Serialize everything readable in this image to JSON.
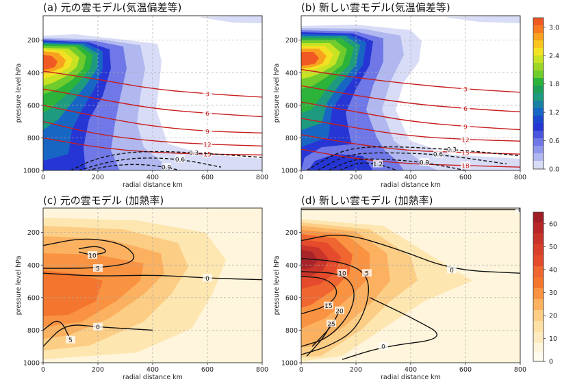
{
  "figure": {
    "panels": [
      {
        "id": "a",
        "title": "(a) 元の雲モデル(気温偏差等)"
      },
      {
        "id": "b",
        "title": "(b) 新しい雲モデル(気温偏差等)"
      },
      {
        "id": "c",
        "title": "(c) 元の雲モデル (加熱率)"
      },
      {
        "id": "d",
        "title": "(d) 新しい雲モデル (加熱率)"
      }
    ],
    "xlabel": "radial distance km",
    "ylabel": "pressure level hPa",
    "x_ticks": [
      "0",
      "200",
      "400",
      "600",
      "800"
    ],
    "y_ticks": [
      "200",
      "400",
      "600",
      "800",
      "1000"
    ],
    "colorbar_top": {
      "ticks": [
        "3.0",
        "2.4",
        "1.8",
        "1.2",
        "0.6",
        "0.0"
      ]
    },
    "colorbar_bottom": {
      "ticks": [
        "60",
        "50",
        "40",
        "30",
        "20",
        "10",
        "0"
      ]
    }
  },
  "chart_data": [
    {
      "type": "heatmap",
      "panel": "a",
      "title": "(a) 元の雲モデル(気温偏差等)",
      "xlabel": "radial distance km",
      "ylabel": "pressure level hPa",
      "xlim": [
        0,
        800
      ],
      "ylim": [
        1000,
        50
      ],
      "y_inverted": true,
      "grid": true,
      "shading_range": [
        0.0,
        3.2
      ],
      "shading_colorbar_ticks": [
        0.0,
        0.6,
        1.2,
        1.8,
        2.4,
        3.0
      ],
      "red_contours": [
        {
          "label": "3",
          "points": [
            [
              0,
              390
            ],
            [
              200,
              440
            ],
            [
              400,
              500
            ],
            [
              600,
              530
            ],
            [
              800,
              550
            ]
          ]
        },
        {
          "label": "6",
          "points": [
            [
              0,
              500
            ],
            [
              200,
              560
            ],
            [
              400,
              620
            ],
            [
              600,
              650
            ],
            [
              800,
              670
            ]
          ]
        },
        {
          "label": "9",
          "points": [
            [
              0,
              600
            ],
            [
              200,
              670
            ],
            [
              400,
              730
            ],
            [
              600,
              760
            ],
            [
              800,
              770
            ]
          ]
        },
        {
          "label": "12",
          "points": [
            [
              0,
              700
            ],
            [
              200,
              780
            ],
            [
              400,
              820
            ],
            [
              600,
              840
            ],
            [
              800,
              850
            ]
          ]
        },
        {
          "label": "15",
          "points": [
            [
              0,
              800
            ],
            [
              200,
              860
            ],
            [
              400,
              890
            ],
            [
              600,
              900
            ],
            [
              800,
              905
            ]
          ]
        }
      ],
      "black_contours": [
        {
          "label": "0.3",
          "points": [
            [
              100,
              1000
            ],
            [
              200,
              920
            ],
            [
              350,
              880
            ],
            [
              550,
              890
            ],
            [
              800,
              920
            ]
          ]
        },
        {
          "label": "0.6",
          "points": [
            [
              130,
              1000
            ],
            [
              230,
              950
            ],
            [
              350,
              920
            ],
            [
              500,
              930
            ],
            [
              650,
              980
            ]
          ]
        },
        {
          "label": "0.9",
          "points": [
            [
              160,
              1000
            ],
            [
              250,
              970
            ],
            [
              350,
              960
            ],
            [
              450,
              980
            ],
            [
              500,
              1000
            ]
          ]
        }
      ]
    },
    {
      "type": "heatmap",
      "panel": "b",
      "title": "(b) 新しい雲モデル(気温偏差等)",
      "xlabel": "radial distance km",
      "ylabel": "pressure level hPa",
      "xlim": [
        0,
        800
      ],
      "ylim": [
        1000,
        50
      ],
      "y_inverted": true,
      "grid": true,
      "shading_range": [
        0.0,
        3.2
      ],
      "shading_colorbar_ticks": [
        0.0,
        0.6,
        1.2,
        1.8,
        2.4,
        3.0
      ],
      "red_contours": [
        {
          "label": "3",
          "points": [
            [
              0,
              380
            ],
            [
              200,
              430
            ],
            [
              400,
              470
            ],
            [
              600,
              500
            ],
            [
              800,
              520
            ]
          ]
        },
        {
          "label": "6",
          "points": [
            [
              0,
              480
            ],
            [
              200,
              540
            ],
            [
              400,
              590
            ],
            [
              600,
              620
            ],
            [
              800,
              640
            ]
          ]
        },
        {
          "label": "9",
          "points": [
            [
              0,
              580
            ],
            [
              200,
              640
            ],
            [
              400,
              700
            ],
            [
              600,
              730
            ],
            [
              800,
              750
            ]
          ]
        },
        {
          "label": "12",
          "points": [
            [
              0,
              680
            ],
            [
              200,
              740
            ],
            [
              400,
              790
            ],
            [
              600,
              810
            ],
            [
              800,
              820
            ]
          ]
        },
        {
          "label": "15",
          "points": [
            [
              0,
              780
            ],
            [
              200,
              840
            ],
            [
              400,
              880
            ],
            [
              600,
              890
            ],
            [
              800,
              900
            ]
          ]
        },
        {
          "label": "18",
          "points": [
            [
              0,
              870
            ],
            [
              200,
              930
            ],
            [
              400,
              960
            ],
            [
              600,
              970
            ],
            [
              800,
              980
            ]
          ]
        }
      ],
      "black_contours": [
        {
          "label": "0.3",
          "points": [
            [
              20,
              1000
            ],
            [
              150,
              870
            ],
            [
              300,
              850
            ],
            [
              550,
              870
            ],
            [
              800,
              910
            ]
          ]
        },
        {
          "label": "0.6",
          "points": [
            [
              60,
              1000
            ],
            [
              170,
              900
            ],
            [
              300,
              890
            ],
            [
              500,
              900
            ],
            [
              750,
              960
            ]
          ]
        },
        {
          "label": "0.9",
          "points": [
            [
              100,
              1000
            ],
            [
              190,
              930
            ],
            [
              300,
              930
            ],
            [
              450,
              950
            ],
            [
              600,
              1000
            ]
          ]
        },
        {
          "label": "1.2",
          "points": [
            [
              140,
              1000
            ],
            [
              210,
              950
            ],
            [
              280,
              960
            ],
            [
              350,
              1000
            ]
          ]
        }
      ]
    },
    {
      "type": "heatmap",
      "panel": "c",
      "title": "(c) 元の雲モデル (加熱率)",
      "xlabel": "radial distance km",
      "ylabel": "pressure level hPa",
      "xlim": [
        0,
        800
      ],
      "ylim": [
        1000,
        50
      ],
      "y_inverted": true,
      "grid": true,
      "shading_range": [
        0,
        65
      ],
      "shading_colorbar_ticks": [
        0,
        10,
        20,
        30,
        40,
        50,
        60
      ],
      "black_contours": [
        {
          "label": "5",
          "points": [
            [
              0,
              280
            ],
            [
              150,
              230
            ],
            [
              300,
              270
            ],
            [
              350,
              380
            ],
            [
              200,
              420
            ],
            [
              0,
              420
            ]
          ]
        },
        {
          "label": "10",
          "points": [
            [
              130,
              300
            ],
            [
              200,
              280
            ],
            [
              240,
              320
            ],
            [
              180,
              340
            ],
            [
              130,
              320
            ]
          ]
        },
        {
          "label": "0",
          "points": [
            [
              0,
              450
            ],
            [
              200,
              470
            ],
            [
              400,
              460
            ],
            [
              600,
              480
            ],
            [
              800,
              490
            ]
          ]
        },
        {
          "label": "0",
          "points": [
            [
              0,
              900
            ],
            [
              80,
              760
            ],
            [
              200,
              780
            ],
            [
              400,
              800
            ]
          ]
        },
        {
          "label": "5",
          "points": [
            [
              0,
              800
            ],
            [
              60,
              720
            ],
            [
              100,
              860
            ]
          ]
        }
      ]
    },
    {
      "type": "heatmap",
      "panel": "d",
      "title": "(d) 新しい雲モデル (加熱率)",
      "xlabel": "radial distance km",
      "ylabel": "pressure level hPa",
      "xlim": [
        0,
        800
      ],
      "ylim": [
        1000,
        50
      ],
      "y_inverted": true,
      "grid": true,
      "shading_range": [
        0,
        65
      ],
      "shading_colorbar_ticks": [
        0,
        10,
        20,
        30,
        40,
        50,
        60
      ],
      "black_contours": [
        {
          "label": "0",
          "points": [
            [
              0,
              60
            ],
            [
              800,
              60
            ]
          ]
        },
        {
          "label": "0",
          "points": [
            [
              0,
              250
            ],
            [
              150,
              200
            ],
            [
              350,
              300
            ],
            [
              550,
              430
            ],
            [
              800,
              450
            ]
          ]
        },
        {
          "label": "0",
          "points": [
            [
              250,
              600
            ],
            [
              400,
              720
            ],
            [
              540,
              850
            ],
            [
              300,
              900
            ],
            [
              150,
              980
            ]
          ]
        },
        {
          "label": "5",
          "points": [
            [
              0,
              950
            ],
            [
              100,
              900
            ],
            [
              200,
              800
            ],
            [
              250,
              600
            ],
            [
              240,
              450
            ],
            [
              150,
              380
            ],
            [
              0,
              360
            ]
          ]
        },
        {
          "label": "10",
          "points": [
            [
              0,
              900
            ],
            [
              100,
              850
            ],
            [
              180,
              700
            ],
            [
              200,
              550
            ],
            [
              150,
              450
            ],
            [
              0,
              440
            ]
          ]
        },
        {
          "label": "15",
          "points": [
            [
              0,
              470
            ],
            [
              90,
              480
            ],
            [
              140,
              560
            ],
            [
              100,
              650
            ],
            [
              0,
              700
            ]
          ]
        },
        {
          "label": "20",
          "points": [
            [
              40,
              900
            ],
            [
              110,
              780
            ],
            [
              140,
              680
            ]
          ]
        },
        {
          "label": "25",
          "points": [
            [
              20,
              960
            ],
            [
              80,
              850
            ],
            [
              110,
              760
            ]
          ]
        }
      ]
    }
  ]
}
